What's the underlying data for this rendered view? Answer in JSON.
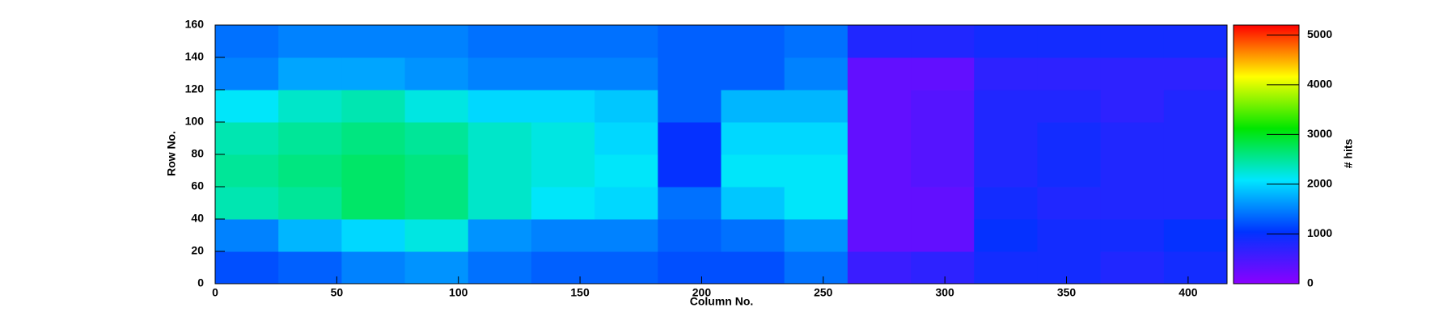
{
  "chart_data": {
    "type": "heatmap",
    "x_label": "Column No.",
    "y_label": "Row No.",
    "z_label": "# hits",
    "xbins": [
      0,
      26,
      52,
      78,
      104,
      130,
      156,
      182,
      208,
      234,
      260,
      286,
      312,
      338,
      364,
      390,
      416
    ],
    "ybins": [
      0,
      20,
      40,
      60,
      80,
      100,
      120,
      140,
      160
    ],
    "z": [
      [
        1200,
        1300,
        1500,
        1600,
        1400,
        1300,
        1300,
        1200,
        1200,
        1400,
        600,
        700,
        900,
        900,
        800,
        900
      ],
      [
        1500,
        1800,
        2000,
        2200,
        1600,
        1500,
        1500,
        1300,
        1400,
        1600,
        300,
        300,
        1000,
        900,
        900,
        1000
      ],
      [
        2400,
        2500,
        2700,
        2600,
        2300,
        2100,
        2000,
        1400,
        1900,
        2100,
        300,
        300,
        900,
        800,
        800,
        800
      ],
      [
        2500,
        2600,
        2700,
        2600,
        2300,
        2200,
        2100,
        1000,
        2100,
        2100,
        300,
        400,
        800,
        900,
        800,
        800
      ],
      [
        2400,
        2500,
        2600,
        2500,
        2300,
        2200,
        2000,
        1000,
        2000,
        2000,
        300,
        400,
        800,
        900,
        800,
        800
      ],
      [
        2100,
        2300,
        2400,
        2200,
        2000,
        2000,
        1900,
        1300,
        1800,
        1800,
        300,
        400,
        800,
        800,
        700,
        800
      ],
      [
        1500,
        1700,
        1700,
        1600,
        1500,
        1500,
        1500,
        1300,
        1300,
        1500,
        300,
        300,
        700,
        700,
        700,
        700
      ],
      [
        1400,
        1500,
        1500,
        1500,
        1400,
        1400,
        1400,
        1300,
        1300,
        1400,
        800,
        800,
        900,
        900,
        900,
        900
      ]
    ],
    "xlim": [
      0,
      416
    ],
    "xticks": [
      0,
      50,
      100,
      150,
      200,
      250,
      300,
      350,
      400
    ],
    "ylim": [
      0,
      160
    ],
    "yticks": [
      0,
      20,
      40,
      60,
      80,
      100,
      120,
      140,
      160
    ],
    "zlim": [
      0,
      5200
    ],
    "zticks": [
      0,
      1000,
      2000,
      3000,
      4000,
      5000
    ],
    "colorscale": [
      "#8a00ff",
      "#0033ff",
      "#00e6ff",
      "#00e600",
      "#ffff00",
      "#ff0000"
    ]
  }
}
